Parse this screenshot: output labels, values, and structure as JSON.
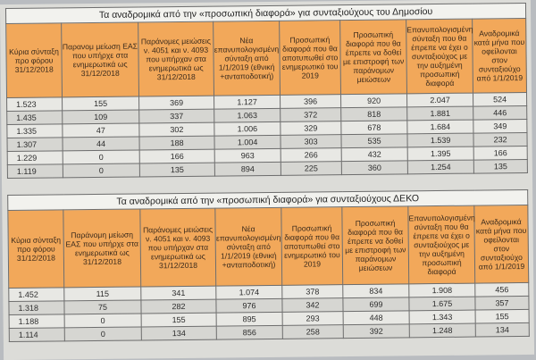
{
  "table1": {
    "caption": "Τα αναδρομικά από την «προσωπική διαφορά» για συνταξιούχους του Δημοσίου",
    "headers": [
      "Κύρια σύνταξη προ φόρου 31/12/2018",
      "Παρανομ μείωση ΕΑΣ που υπήρχε στα ενημερωτικά ως 31/12/2018",
      "Παράνομες μειώσεις ν. 4051 και ν. 4093 που υπήρχαν στα ενημερωτικά ως 31/12/2018",
      "Νέα επανυπολογισμένη σύνταξη από 1/1/2019 (εθνική +ανταποδοτική)",
      "Προσωπική διαφορά που θα αποτυπωθεί στο ενημερωτικό του 2019",
      "Προσωπική διαφορά που θα έπρεπε να δοθεί με επιστροφή των παράνομων μειώσεων",
      "Επανυπολογισμένη σύνταξη που θα έπρεπε να έχει ο συνταξιούχος με την αυξημένη προσωπική διαφορά",
      "Αναδρομικά κατά μήνα που οφείλονται στον συνταξιούχο από 1/1/2019"
    ],
    "rows": [
      [
        "1.523",
        "155",
        "369",
        "1.127",
        "396",
        "920",
        "2.047",
        "524"
      ],
      [
        "1.435",
        "109",
        "337",
        "1.063",
        "372",
        "818",
        "1.881",
        "446"
      ],
      [
        "1.335",
        "47",
        "302",
        "1.006",
        "329",
        "678",
        "1.684",
        "349"
      ],
      [
        "1.307",
        "44",
        "188",
        "1.004",
        "303",
        "535",
        "1.539",
        "232"
      ],
      [
        "1.229",
        "0",
        "166",
        "963",
        "266",
        "432",
        "1.395",
        "166"
      ],
      [
        "1.119",
        "0",
        "135",
        "894",
        "225",
        "360",
        "1.254",
        "135"
      ]
    ]
  },
  "table2": {
    "caption": "Τα αναδρομικά από την «προσωπική διαφορά» για συνταξιούχους ΔΕΚΟ",
    "headers": [
      "Κύρια σύνταξη προ φόρου 31/12/2018",
      "Παράνομη μείωση ΕΑΣ που υπήρχε στα ενημερωτικά ως 31/12/2018",
      "Παράνομες μειώσεις ν. 4051 και ν. 4093 που υπήρχαν στα ενημερωτικά ως 31/12/2018",
      "Νέα επανυπολογισμένη σύνταξη από 1/1/2019 (εθνική +ανταποδοτική)",
      "Προσωπική διαφορά που θα αποτυπωθεί στο ενημερωτικό του 2019",
      "Προσωπική διαφορά που θα έπρεπε να δοθεί με επιστροφή των παράνομων μειώσεων",
      "Επανυπολογισμένη σύνταξη που θα έπρεπε να έχει ο συνταξιούχος με την αυξημένη προσωπική διαφορά",
      "Αναδρομικά κατά μήνα που οφείλονται στον συνταξιούχο από 1/1/2019"
    ],
    "rows": [
      [
        "1.452",
        "115",
        "341",
        "1.074",
        "378",
        "834",
        "1.908",
        "456"
      ],
      [
        "1.318",
        "75",
        "282",
        "976",
        "342",
        "699",
        "1.675",
        "357"
      ],
      [
        "1.188",
        "0",
        "155",
        "895",
        "293",
        "448",
        "1.343",
        "155"
      ],
      [
        "1.114",
        "0",
        "134",
        "856",
        "258",
        "392",
        "1.248",
        "134"
      ]
    ]
  }
}
